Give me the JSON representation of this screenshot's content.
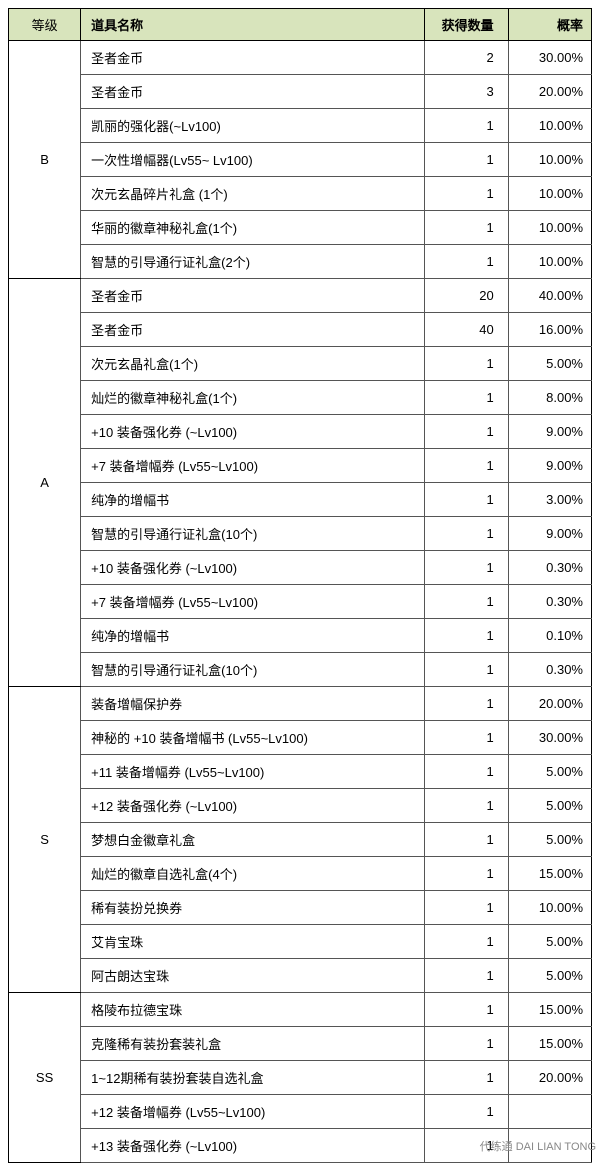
{
  "columns": {
    "tier": "等级",
    "name": "道具名称",
    "qty": "获得数量",
    "rate": "概率"
  },
  "groups": [
    {
      "tier": "B",
      "rows": [
        {
          "name": "圣者金币",
          "qty": "2",
          "rate": "30.00%"
        },
        {
          "name": "圣者金币",
          "qty": "3",
          "rate": "20.00%"
        },
        {
          "name": "凯丽的强化器(~Lv100)",
          "qty": "1",
          "rate": "10.00%"
        },
        {
          "name": "一次性增幅器(Lv55~ Lv100)",
          "qty": "1",
          "rate": "10.00%"
        },
        {
          "name": "次元玄晶碎片礼盒 (1个)",
          "qty": "1",
          "rate": "10.00%"
        },
        {
          "name": "华丽的徽章神秘礼盒(1个)",
          "qty": "1",
          "rate": "10.00%"
        },
        {
          "name": "智慧的引导通行证礼盒(2个)",
          "qty": "1",
          "rate": "10.00%"
        }
      ]
    },
    {
      "tier": "A",
      "rows": [
        {
          "name": "圣者金币",
          "qty": "20",
          "rate": "40.00%"
        },
        {
          "name": "圣者金币",
          "qty": "40",
          "rate": "16.00%"
        },
        {
          "name": "次元玄晶礼盒(1个)",
          "qty": "1",
          "rate": "5.00%"
        },
        {
          "name": "灿烂的徽章神秘礼盒(1个)",
          "qty": "1",
          "rate": "8.00%"
        },
        {
          "name": "+10 装备强化券 (~Lv100)",
          "qty": "1",
          "rate": "9.00%"
        },
        {
          "name": "+7 装备增幅券 (Lv55~Lv100)",
          "qty": "1",
          "rate": "9.00%"
        },
        {
          "name": "纯净的增幅书",
          "qty": "1",
          "rate": "3.00%"
        },
        {
          "name": "智慧的引导通行证礼盒(10个)",
          "qty": "1",
          "rate": "9.00%"
        },
        {
          "name": "+10 装备强化券 (~Lv100)",
          "qty": "1",
          "rate": "0.30%"
        },
        {
          "name": "+7 装备增幅券 (Lv55~Lv100)",
          "qty": "1",
          "rate": "0.30%"
        },
        {
          "name": "纯净的增幅书",
          "qty": "1",
          "rate": "0.10%"
        },
        {
          "name": "智慧的引导通行证礼盒(10个)",
          "qty": "1",
          "rate": "0.30%"
        }
      ]
    },
    {
      "tier": "S",
      "rows": [
        {
          "name": "装备增幅保护券",
          "qty": "1",
          "rate": "20.00%"
        },
        {
          "name": "神秘的 +10 装备增幅书 (Lv55~Lv100)",
          "qty": "1",
          "rate": "30.00%"
        },
        {
          "name": "+11 装备增幅券 (Lv55~Lv100)",
          "qty": "1",
          "rate": "5.00%"
        },
        {
          "name": "+12 装备强化券 (~Lv100)",
          "qty": "1",
          "rate": "5.00%"
        },
        {
          "name": "梦想白金徽章礼盒",
          "qty": "1",
          "rate": "5.00%"
        },
        {
          "name": "灿烂的徽章自选礼盒(4个)",
          "qty": "1",
          "rate": "15.00%"
        },
        {
          "name": "稀有装扮兑换券",
          "qty": "1",
          "rate": "10.00%"
        },
        {
          "name": "艾肯宝珠",
          "qty": "1",
          "rate": "5.00%"
        },
        {
          "name": "阿古朗达宝珠",
          "qty": "1",
          "rate": "5.00%"
        }
      ]
    },
    {
      "tier": "SS",
      "rows": [
        {
          "name": "格陵布拉德宝珠",
          "qty": "1",
          "rate": "15.00%"
        },
        {
          "name": "克隆稀有装扮套装礼盒",
          "qty": "1",
          "rate": "15.00%"
        },
        {
          "name": "1~12期稀有装扮套装自选礼盒",
          "qty": "1",
          "rate": "20.00%"
        },
        {
          "name": "+12 装备增幅券 (Lv55~Lv100)",
          "qty": "1",
          "rate": ""
        },
        {
          "name": "+13 装备强化券 (~Lv100)",
          "qty": "1",
          "rate": ""
        }
      ]
    }
  ],
  "watermark": "代练通 DAI LIAN TONG",
  "style": {
    "header_bg": "#d8e4bc",
    "border_color": "#000000",
    "font_size": 13
  }
}
